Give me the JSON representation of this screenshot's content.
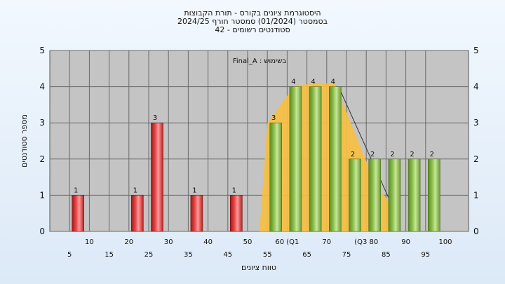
{
  "chart_data": {
    "type": "bar",
    "title_lines": [
      "היסטוגרמת ציונים בקורס - תורת הקבוצות",
      "בסמסטר  (01/2024)  סמסטר חורף 2024/25",
      "42 - סטודנטים רשומים"
    ],
    "xlabel": "טווח ציונים",
    "ylabel": "מספר סטודנטים",
    "ylim": [
      0,
      5
    ],
    "yticks": [
      0,
      1,
      2,
      3,
      4,
      5
    ],
    "xticks_lower": [
      "5",
      "15",
      "25",
      "35",
      "45",
      "55",
      "65",
      "75",
      "85",
      "95"
    ],
    "xticks_upper": [
      "10",
      "20",
      "30",
      "40",
      "50",
      "60 (Q1",
      "70",
      "(Q3 80",
      "90",
      "100"
    ],
    "annotation": "Final_A : בשימוש",
    "grid": true,
    "colors": {
      "fail": "#d83030",
      "pass": "#8ab84a",
      "area": "#f8c040",
      "plot_bg": "#c4c4c4"
    },
    "series": [
      {
        "bin_starts": [
          5,
          20,
          25,
          35,
          45
        ],
        "values": [
          1,
          1,
          3,
          1,
          1
        ],
        "labels": [
          "1",
          "1",
          "3",
          "1",
          "1"
        ]
      },
      {
        "bin_starts": [
          55,
          60,
          65,
          70,
          75,
          80,
          85,
          90,
          95
        ],
        "values": [
          3,
          4,
          4,
          4,
          2,
          2,
          2,
          2,
          2
        ],
        "labels": [
          "3",
          "4",
          "4",
          "4",
          "2",
          "2",
          "2",
          "2",
          "2"
        ]
      }
    ]
  }
}
